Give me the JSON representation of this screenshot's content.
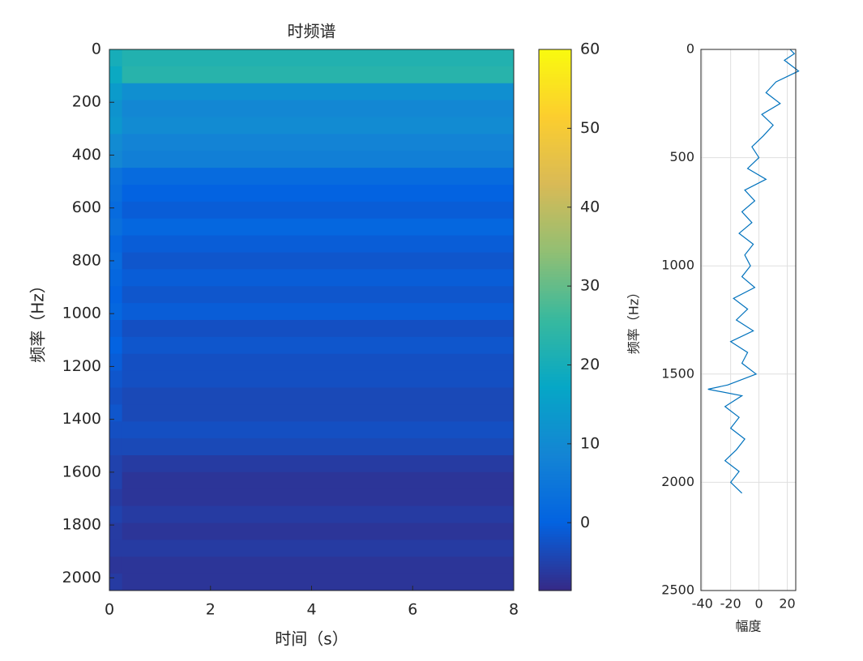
{
  "chart_data": [
    {
      "type": "heatmap",
      "title": "时频谱",
      "xlabel": "时间（s）",
      "ylabel": "频率（Hz）",
      "x_bins": [
        0,
        0.25,
        8
      ],
      "y_bins": [
        0,
        64,
        128,
        192,
        256,
        320,
        384,
        448,
        512,
        576,
        640,
        704,
        768,
        832,
        896,
        960,
        1024,
        1088,
        1152,
        1216,
        1280,
        1344,
        1408,
        1472,
        1536,
        1600,
        1664,
        1728,
        1792,
        1856,
        1920,
        1984,
        2048
      ],
      "values": [
        [
          20,
          22
        ],
        [
          18,
          23
        ],
        [
          14,
          11
        ],
        [
          12,
          9
        ],
        [
          13,
          10
        ],
        [
          10,
          8
        ],
        [
          9,
          7
        ],
        [
          4,
          2
        ],
        [
          3,
          0
        ],
        [
          2,
          -1
        ],
        [
          3,
          1
        ],
        [
          1,
          -1
        ],
        [
          2,
          -2
        ],
        [
          1,
          -1
        ],
        [
          0,
          -2
        ],
        [
          1,
          -1
        ],
        [
          -1,
          -3
        ],
        [
          0,
          -2
        ],
        [
          -1,
          -3
        ],
        [
          -2,
          -3
        ],
        [
          -3,
          -4
        ],
        [
          -2,
          -4
        ],
        [
          -3,
          -3
        ],
        [
          -4,
          -4
        ],
        [
          -5,
          -6
        ],
        [
          -5,
          -7
        ],
        [
          -6,
          -7
        ],
        [
          -5,
          -6
        ],
        [
          -6,
          -7
        ],
        [
          -6,
          -6
        ],
        [
          -7,
          -7
        ],
        [
          -6,
          -7
        ]
      ],
      "xlim": [
        0,
        8
      ],
      "ylim": [
        0,
        2048
      ],
      "xticks": [
        0,
        2,
        4,
        6,
        8
      ],
      "yticks": [
        0,
        200,
        400,
        600,
        800,
        1000,
        1200,
        1400,
        1600,
        1800,
        2000
      ],
      "y_reversed": true,
      "clim": [
        -8.6,
        60
      ],
      "cticks": [
        0,
        10,
        20,
        30,
        40,
        50,
        60
      ],
      "colormap": [
        "#352a87",
        "#0363e1",
        "#1485d4",
        "#06a7c6",
        "#38b99e",
        "#92bf73",
        "#d9ba56",
        "#fcce2e",
        "#f9fb0e"
      ]
    },
    {
      "type": "line",
      "xlabel": "幅度",
      "ylabel": "频率（Hz）",
      "orientation": "vertical",
      "y": [
        0,
        20,
        50,
        80,
        100,
        150,
        200,
        250,
        300,
        350,
        400,
        450,
        500,
        550,
        600,
        650,
        700,
        750,
        800,
        850,
        900,
        950,
        1000,
        1050,
        1100,
        1150,
        1200,
        1250,
        1300,
        1350,
        1400,
        1450,
        1500,
        1550,
        1570,
        1600,
        1650,
        1700,
        1750,
        1800,
        1850,
        1900,
        1950,
        2000,
        2050
      ],
      "series": [
        {
          "color": "#0072bd",
          "values": [
            22,
            25,
            18,
            24,
            28,
            12,
            5,
            15,
            2,
            10,
            3,
            -5,
            0,
            -8,
            5,
            -10,
            -3,
            -12,
            -5,
            -14,
            -4,
            -10,
            -6,
            -12,
            -3,
            -18,
            -8,
            -16,
            -4,
            -20,
            -8,
            -12,
            -2,
            -22,
            -36,
            -12,
            -24,
            -14,
            -20,
            -10,
            -16,
            -24,
            -14,
            -20,
            -12
          ]
        }
      ],
      "xlim": [
        -41,
        26
      ],
      "ylim": [
        0,
        2500
      ],
      "xticks": [
        -40,
        -20,
        0,
        20
      ],
      "yticks": [
        0,
        500,
        1000,
        1500,
        2000,
        2500
      ],
      "y_reversed": true,
      "grid": true
    }
  ]
}
